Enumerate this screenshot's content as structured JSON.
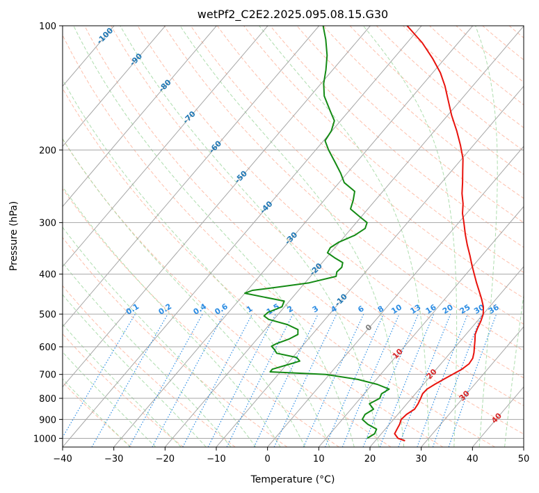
{
  "chart_data": {
    "type": "skewt",
    "title": "wetPf2_C2E2.2025.095.08.15.G30",
    "xlabel": "Temperature (°C)",
    "ylabel": "Pressure (hPa)",
    "xlim": [
      -40,
      50
    ],
    "ylim": [
      1050,
      100
    ],
    "x_ticks": [
      "−40",
      "−30",
      "−20",
      "−10",
      "0",
      "10",
      "20",
      "30",
      "40",
      "50"
    ],
    "x_tick_values": [
      -40,
      -30,
      -20,
      -10,
      0,
      10,
      20,
      30,
      40,
      50
    ],
    "y_ticks": [
      "1000",
      "900",
      "800",
      "700",
      "600",
      "500",
      "400",
      "300",
      "200",
      "100"
    ],
    "y_tick_values": [
      1000,
      900,
      800,
      700,
      600,
      500,
      400,
      300,
      200,
      100
    ],
    "grid": true,
    "colors": {
      "temperature": "#e8120c",
      "dewpoint": "#138a13",
      "isotherm_label": "#1f77b4",
      "mixing_ratio_label": "#2b8ce3",
      "freezing_label": "#7f7f7f",
      "warm_label": "#d62728",
      "dry_adiabat": "#fda98f",
      "moist_adiabat": "#9fd79f",
      "mixing_ratio_line": "#2b8ce3",
      "skewed_grid": "#a6a6a6"
    },
    "isotherm_labels": [
      {
        "text": "-100",
        "value": -100
      },
      {
        "text": "-90",
        "value": -90
      },
      {
        "text": "-80",
        "value": -80
      },
      {
        "text": "-70",
        "value": -70
      },
      {
        "text": "-60",
        "value": -60
      },
      {
        "text": "-50",
        "value": -50
      },
      {
        "text": "-40",
        "value": -40
      },
      {
        "text": "-30",
        "value": -30
      },
      {
        "text": "-20",
        "value": -20
      },
      {
        "text": "-10",
        "value": -10
      }
    ],
    "freezing_label": {
      "text": "0",
      "value": 0
    },
    "warm_isotherm_labels": [
      {
        "text": "10",
        "value": 10
      },
      {
        "text": "20",
        "value": 20
      },
      {
        "text": "30",
        "value": 30
      },
      {
        "text": "40",
        "value": 40
      }
    ],
    "mixing_ratio_labels": [
      "0.1",
      "0.2",
      "0.4",
      "0.6",
      "1",
      "1.5",
      "2",
      "3",
      "4",
      "6",
      "8",
      "10",
      "13",
      "16",
      "20",
      "25",
      "30",
      "36"
    ],
    "mixing_ratio_values": [
      0.1,
      0.2,
      0.4,
      0.6,
      1,
      1.5,
      2,
      3,
      4,
      6,
      8,
      10,
      13,
      16,
      20,
      25,
      30,
      36
    ],
    "series": [
      {
        "key": "temperature",
        "points": [
          [
            1014,
            25.8
          ],
          [
            1000,
            24.0
          ],
          [
            975,
            22.6
          ],
          [
            950,
            22.3
          ],
          [
            925,
            22.0
          ],
          [
            900,
            21.5
          ],
          [
            875,
            21.7
          ],
          [
            850,
            22.4
          ],
          [
            825,
            22.2
          ],
          [
            800,
            21.8
          ],
          [
            780,
            21.4
          ],
          [
            760,
            21.5
          ],
          [
            740,
            22.2
          ],
          [
            720,
            23.1
          ],
          [
            700,
            24.0
          ],
          [
            680,
            25.0
          ],
          [
            660,
            25.5
          ],
          [
            640,
            25.3
          ],
          [
            620,
            24.6
          ],
          [
            600,
            23.7
          ],
          [
            580,
            22.8
          ],
          [
            560,
            21.8
          ],
          [
            540,
            21.2
          ],
          [
            520,
            20.7
          ],
          [
            500,
            20.0
          ],
          [
            480,
            18.8
          ],
          [
            460,
            17.2
          ],
          [
            440,
            15.4
          ],
          [
            420,
            13.5
          ],
          [
            400,
            11.6
          ],
          [
            380,
            9.6
          ],
          [
            360,
            7.6
          ],
          [
            340,
            5.4
          ],
          [
            320,
            3.2
          ],
          [
            300,
            1.0
          ],
          [
            285,
            -0.8
          ],
          [
            270,
            -2.3
          ],
          [
            255,
            -4.2
          ],
          [
            240,
            -5.9
          ],
          [
            225,
            -7.8
          ],
          [
            210,
            -9.8
          ],
          [
            195,
            -12.5
          ],
          [
            180,
            -15.6
          ],
          [
            165,
            -19.2
          ],
          [
            150,
            -22.8
          ],
          [
            140,
            -25.4
          ],
          [
            130,
            -28.5
          ],
          [
            120,
            -32.4
          ],
          [
            110,
            -37.0
          ],
          [
            100,
            -42.8
          ]
        ]
      },
      {
        "key": "dewpoint",
        "points": [
          [
            1000,
            18.0
          ],
          [
            975,
            18.7
          ],
          [
            950,
            18.3
          ],
          [
            925,
            15.8
          ],
          [
            900,
            13.9
          ],
          [
            875,
            13.6
          ],
          [
            850,
            14.4
          ],
          [
            825,
            12.7
          ],
          [
            800,
            13.8
          ],
          [
            780,
            13.4
          ],
          [
            760,
            14.1
          ],
          [
            740,
            11.0
          ],
          [
            720,
            6.4
          ],
          [
            700,
            -0.7
          ],
          [
            690,
            -12.0
          ],
          [
            680,
            -12.0
          ],
          [
            665,
            -10.0
          ],
          [
            650,
            -8.0
          ],
          [
            637,
            -9.2
          ],
          [
            622,
            -13.8
          ],
          [
            610,
            -14.8
          ],
          [
            598,
            -16.0
          ],
          [
            590,
            -15.5
          ],
          [
            575,
            -13.8
          ],
          [
            560,
            -12.8
          ],
          [
            545,
            -13.6
          ],
          [
            530,
            -16.5
          ],
          [
            515,
            -21.0
          ],
          [
            505,
            -22.5
          ],
          [
            495,
            -22.3
          ],
          [
            480,
            -20.5
          ],
          [
            465,
            -21.0
          ],
          [
            455,
            -25.5
          ],
          [
            445,
            -30.0
          ],
          [
            438,
            -29.0
          ],
          [
            430,
            -24.5
          ],
          [
            420,
            -19.2
          ],
          [
            405,
            -15.0
          ],
          [
            395,
            -15.6
          ],
          [
            385,
            -15.4
          ],
          [
            375,
            -16.0
          ],
          [
            365,
            -18.4
          ],
          [
            355,
            -20.6
          ],
          [
            345,
            -20.9
          ],
          [
            335,
            -20.2
          ],
          [
            322,
            -18.2
          ],
          [
            310,
            -17.3
          ],
          [
            300,
            -17.9
          ],
          [
            290,
            -20.4
          ],
          [
            278,
            -23.4
          ],
          [
            265,
            -24.3
          ],
          [
            252,
            -25.5
          ],
          [
            240,
            -29.0
          ],
          [
            228,
            -31.2
          ],
          [
            215,
            -34.0
          ],
          [
            200,
            -37.5
          ],
          [
            190,
            -39.7
          ],
          [
            180,
            -40.1
          ],
          [
            170,
            -41.2
          ],
          [
            160,
            -43.9
          ],
          [
            148,
            -47.3
          ],
          [
            138,
            -49.5
          ],
          [
            128,
            -51.3
          ],
          [
            118,
            -53.5
          ],
          [
            108,
            -56.4
          ],
          [
            100,
            -59.2
          ]
        ]
      }
    ]
  }
}
